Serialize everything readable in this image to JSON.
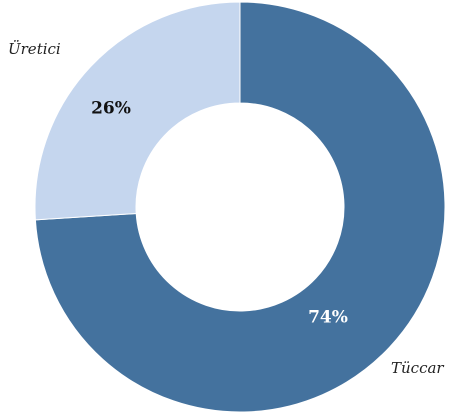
{
  "chart_data": {
    "type": "pie",
    "donut": true,
    "title": "",
    "slices": [
      {
        "name": "Tüccar",
        "value": 74,
        "label": "74%",
        "color": "#44729e",
        "label_color": "#ffffff"
      },
      {
        "name": "Üretici",
        "value": 26,
        "label": "26%",
        "color": "#c5d6ee",
        "label_color": "#111111"
      }
    ],
    "start_angle_deg": 0,
    "direction": "clockwise",
    "legend": "none"
  }
}
